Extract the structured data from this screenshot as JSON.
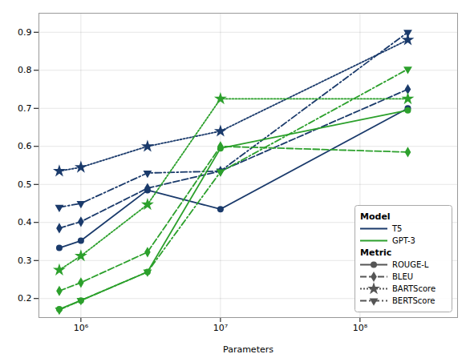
{
  "chart_data": {
    "type": "line",
    "xlabel": "Parameters",
    "log": "x",
    "grid": true,
    "legend": "lower right",
    "x": [
      700000,
      1000000,
      3000000,
      10000000,
      220000000
    ],
    "xlim": [
      500000,
      500000000
    ],
    "xticks": [
      {
        "value": 1000000,
        "label": "10⁶"
      },
      {
        "value": 10000000,
        "label": "10⁷"
      },
      {
        "value": 100000000,
        "label": "10⁸"
      }
    ],
    "ylim": [
      0.15,
      0.95
    ],
    "yticks": [
      0.2,
      0.3,
      0.4,
      0.5,
      0.6,
      0.7,
      0.8,
      0.9
    ],
    "legend_sections": [
      {
        "title": "Model",
        "entries": [
          "T5",
          "GPT-3"
        ]
      },
      {
        "title": "Metric",
        "entries": [
          "ROUGE-L",
          "BLEU",
          "BARTScore",
          "BERTScore"
        ]
      }
    ],
    "series": [
      {
        "name": "T5",
        "metric": "ROUGE-L",
        "color": "#1a3a6b",
        "line_style": "solid",
        "marker": "circle",
        "values": [
          0.333,
          0.352,
          0.485,
          0.435,
          0.7
        ]
      },
      {
        "name": "T5",
        "metric": "BLEU",
        "color": "#1a3a6b",
        "line_style": "dashed",
        "marker": "diamond",
        "values": [
          0.385,
          0.402,
          0.49,
          0.535,
          0.75
        ]
      },
      {
        "name": "T5",
        "metric": "BARTScore",
        "color": "#1a3a6b",
        "line_style": "dotted",
        "marker": "star",
        "values": [
          0.535,
          0.545,
          0.6,
          0.64,
          0.88
        ]
      },
      {
        "name": "T5",
        "metric": "BERTScore",
        "color": "#1a3a6b",
        "line_style": "dashdot",
        "marker": "triangle-down",
        "values": [
          0.44,
          0.45,
          0.53,
          0.535,
          0.9
        ]
      },
      {
        "name": "GPT-3",
        "metric": "ROUGE-L",
        "color": "#2ca02c",
        "line_style": "solid",
        "marker": "circle",
        "values": [
          0.172,
          0.195,
          0.27,
          0.595,
          0.695
        ]
      },
      {
        "name": "GPT-3",
        "metric": "BLEU",
        "color": "#2ca02c",
        "line_style": "dashed",
        "marker": "diamond",
        "values": [
          0.22,
          0.242,
          0.322,
          0.6,
          0.585
        ]
      },
      {
        "name": "GPT-3",
        "metric": "BARTScore",
        "color": "#2ca02c",
        "line_style": "dotted",
        "marker": "star",
        "values": [
          0.275,
          0.312,
          0.447,
          0.725,
          0.725
        ]
      },
      {
        "name": "GPT-3",
        "metric": "BERTScore",
        "color": "#2ca02c",
        "line_style": "dashdot",
        "marker": "triangle-down",
        "values": [
          0.17,
          0.195,
          0.27,
          0.533,
          0.803
        ]
      }
    ]
  }
}
